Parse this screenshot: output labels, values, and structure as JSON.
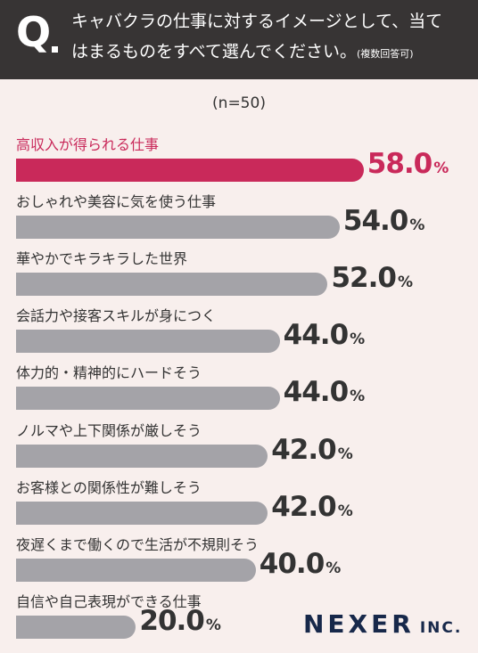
{
  "header": {
    "q_mark": "Q",
    "question_line1": "キャバクラの仕事に対するイメージとして、当て",
    "question_line2": "はまるものをすべて選んでください。",
    "question_note": "(複数回答可)"
  },
  "sample_size": "(n=50)",
  "logo": {
    "name": "NEXER",
    "suffix": "INC."
  },
  "colors": {
    "highlight": "#c9295a",
    "bar": "#a4a3a8",
    "header_bg": "#373434",
    "background": "#f8efed"
  },
  "chart_data": {
    "type": "bar",
    "orientation": "horizontal",
    "unit": "%",
    "categories": [
      "高収入が得られる仕事",
      "おしゃれや美容に気を使う仕事",
      "華やかでキラキラした世界",
      "会話力や接客スキルが身につく",
      "体力的・精神的にハードそう",
      "ノルマや上下関係が厳しそう",
      "お客様との関係性が難しそう",
      "夜遅くまで働くので生活が不規則そう",
      "自信や自己表現ができる仕事"
    ],
    "values": [
      58.0,
      54.0,
      52.0,
      44.0,
      44.0,
      42.0,
      42.0,
      40.0,
      20.0
    ],
    "value_labels": [
      "58.0",
      "54.0",
      "52.0",
      "44.0",
      "44.0",
      "42.0",
      "42.0",
      "40.0",
      "20.0"
    ],
    "highlight_index": 0
  }
}
